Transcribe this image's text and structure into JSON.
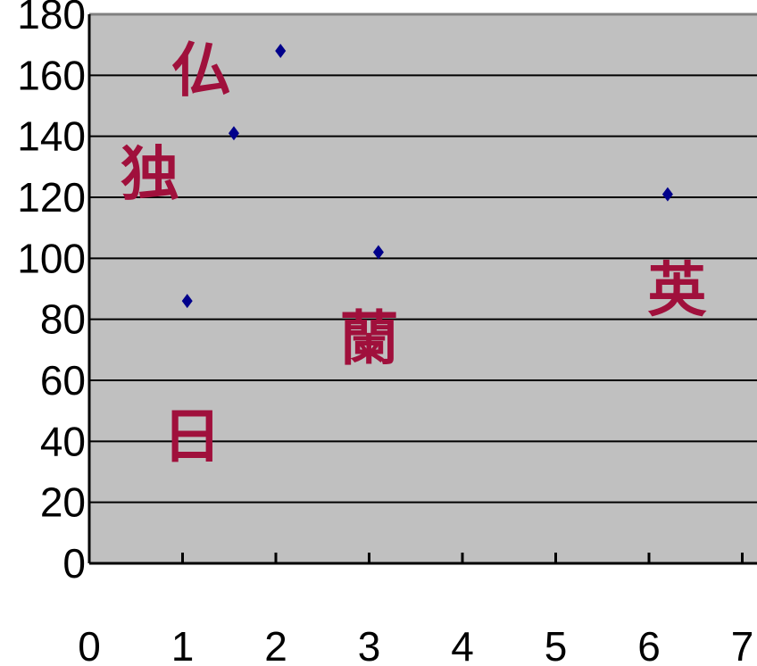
{
  "chart_data": {
    "type": "scatter",
    "title": "",
    "xlabel": "",
    "ylabel": "",
    "xlim": [
      0,
      7
    ],
    "ylim": [
      0,
      180
    ],
    "xticks": [
      "0",
      "1",
      "2",
      "3",
      "4",
      "5",
      "6",
      "7"
    ],
    "yticks": [
      "0",
      "20",
      "40",
      "60",
      "80",
      "100",
      "120",
      "140",
      "160",
      "180"
    ],
    "grid": true,
    "legend": "none",
    "plot_background": "#c0c0c0",
    "marker_color": "#00008b",
    "annotation_color": "#a0103c",
    "series": [
      {
        "points": [
          {
            "x": 1.05,
            "y": 86
          },
          {
            "x": 1.55,
            "y": 141
          },
          {
            "x": 2.05,
            "y": 168
          },
          {
            "x": 3.1,
            "y": 102
          },
          {
            "x": 6.2,
            "y": 121
          }
        ]
      }
    ],
    "annotations": [
      {
        "text": "仏",
        "x": 1.2,
        "y": 162
      },
      {
        "text": "独",
        "x": 0.65,
        "y": 128
      },
      {
        "text": "英",
        "x": 6.3,
        "y": 90
      },
      {
        "text": "蘭",
        "x": 3.0,
        "y": 74
      },
      {
        "text": "日",
        "x": 1.1,
        "y": 42
      }
    ]
  }
}
